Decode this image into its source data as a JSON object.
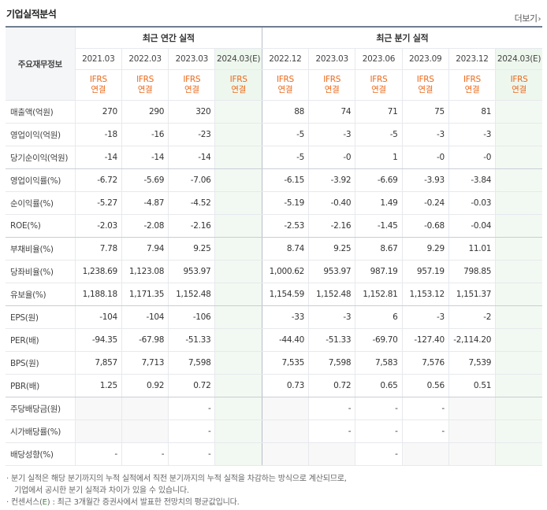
{
  "title": "기업실적분석",
  "more_label": "더보기",
  "more_arrow": "›",
  "row_header": "주요재무정보",
  "annual_label": "최근 연간 실적",
  "quarter_label": "최근 분기 실적",
  "annual_periods": [
    "2021.03",
    "2022.03",
    "2023.03"
  ],
  "annual_est": "2024.03(E)",
  "quarter_periods": [
    "2022.12",
    "2023.03",
    "2023.06",
    "2023.09",
    "2023.12"
  ],
  "quarter_est": "2024.03(E)",
  "ifrs": "IFRS",
  "consol": "연결",
  "rows": [
    {
      "label": "매출액(억원)",
      "a": [
        "270",
        "290",
        "320",
        ""
      ],
      "q": [
        "88",
        "74",
        "71",
        "75",
        "81",
        ""
      ]
    },
    {
      "label": "영업이익(억원)",
      "a": [
        "-18",
        "-16",
        "-23",
        ""
      ],
      "q": [
        "-5",
        "-3",
        "-5",
        "-3",
        "-3",
        ""
      ]
    },
    {
      "label": "당기순이익(억원)",
      "a": [
        "-14",
        "-14",
        "-14",
        ""
      ],
      "q": [
        "-5",
        "-0",
        "1",
        "-0",
        "-0",
        ""
      ]
    },
    {
      "label": "영업이익률(%)",
      "a": [
        "-6.72",
        "-5.69",
        "-7.06",
        ""
      ],
      "q": [
        "-6.15",
        "-3.92",
        "-6.69",
        "-3.93",
        "-3.84",
        ""
      ]
    },
    {
      "label": "순이익률(%)",
      "a": [
        "-5.27",
        "-4.87",
        "-4.52",
        ""
      ],
      "q": [
        "-5.19",
        "-0.40",
        "1.49",
        "-0.24",
        "-0.03",
        ""
      ]
    },
    {
      "label": "ROE(%)",
      "a": [
        "-2.03",
        "-2.08",
        "-2.16",
        ""
      ],
      "q": [
        "-2.53",
        "-2.16",
        "-1.45",
        "-0.68",
        "-0.04",
        ""
      ]
    },
    {
      "label": "부채비율(%)",
      "a": [
        "7.78",
        "7.94",
        "9.25",
        ""
      ],
      "q": [
        "8.74",
        "9.25",
        "8.67",
        "9.29",
        "11.01",
        ""
      ]
    },
    {
      "label": "당좌비율(%)",
      "a": [
        "1,238.69",
        "1,123.08",
        "953.97",
        ""
      ],
      "q": [
        "1,000.62",
        "953.97",
        "987.19",
        "957.19",
        "798.85",
        ""
      ]
    },
    {
      "label": "유보율(%)",
      "a": [
        "1,188.18",
        "1,171.35",
        "1,152.48",
        ""
      ],
      "q": [
        "1,154.59",
        "1,152.48",
        "1,152.81",
        "1,153.12",
        "1,151.37",
        ""
      ]
    },
    {
      "label": "EPS(원)",
      "a": [
        "-104",
        "-104",
        "-106",
        ""
      ],
      "q": [
        "-33",
        "-3",
        "6",
        "-3",
        "-2",
        ""
      ]
    },
    {
      "label": "PER(배)",
      "a": [
        "-94.35",
        "-67.98",
        "-51.33",
        ""
      ],
      "q": [
        "-44.40",
        "-51.33",
        "-69.70",
        "-127.40",
        "-2,114.20",
        ""
      ]
    },
    {
      "label": "BPS(원)",
      "a": [
        "7,857",
        "7,713",
        "7,598",
        ""
      ],
      "q": [
        "7,535",
        "7,598",
        "7,583",
        "7,576",
        "7,539",
        ""
      ]
    },
    {
      "label": "PBR(배)",
      "a": [
        "1.25",
        "0.92",
        "0.72",
        ""
      ],
      "q": [
        "0.73",
        "0.72",
        "0.65",
        "0.56",
        "0.51",
        ""
      ]
    },
    {
      "label": "주당배당금(원)",
      "a": [
        "",
        "",
        "-",
        ""
      ],
      "q": [
        "",
        "-",
        "-",
        "-",
        "",
        ""
      ]
    },
    {
      "label": "시가배당률(%)",
      "a": [
        "",
        "",
        "-",
        ""
      ],
      "q": [
        "",
        "-",
        "-",
        "-",
        "",
        ""
      ]
    },
    {
      "label": "배당성향(%)",
      "a": [
        "-",
        "-",
        "-",
        ""
      ],
      "q": [
        "",
        "",
        "-",
        "",
        "",
        ""
      ]
    }
  ],
  "notes": {
    "line1": "· 분기 실적은 해당 분기까지의 누적 실적에서 직전 분기까지의 누적 실적을 차감하는 방식으로 계산되므로,",
    "line2": "기업에서 공시한 분기 실적과 차이가 있을 수 있습니다.",
    "line3_prefix": "· 컨센서스(",
    "line3_e": "E",
    "line3_suffix": ") : 최근 3개월간 증권사에서 발표한 전망치의 평균값입니다."
  }
}
